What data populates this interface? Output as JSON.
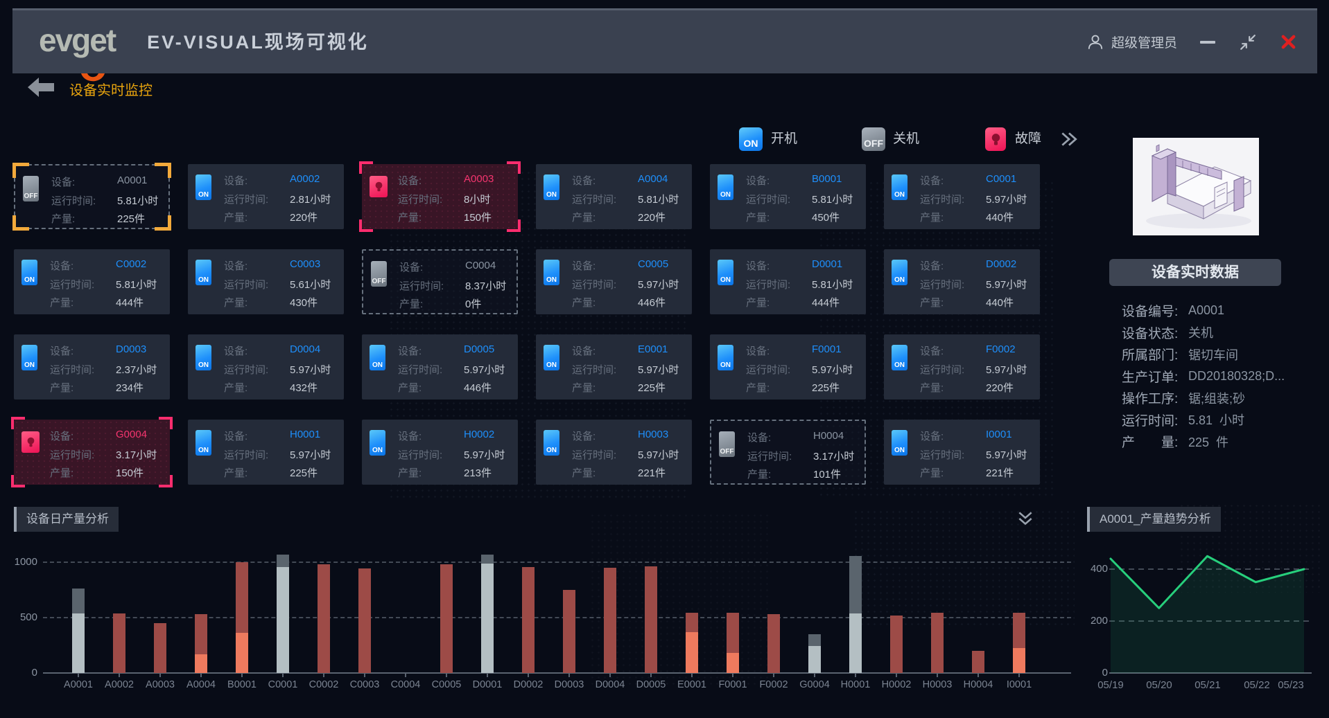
{
  "titlebar": {
    "logo_text": "evget",
    "app_title": "EV-VISUAL现场可视化",
    "user_name": "超级管理员"
  },
  "breadcrumb": {
    "label": "设备实时监控"
  },
  "legend": {
    "on_badge": "ON",
    "off_badge": "OFF",
    "on_label": "开机",
    "off_label": "关机",
    "fault_label": "故障"
  },
  "card_labels": {
    "device": "设备:",
    "runtime": "运行时间:",
    "output": "产量:"
  },
  "devices": [
    {
      "id": "A0001",
      "status": "off",
      "selected": true,
      "runtime": "5.81小时",
      "output": "225件"
    },
    {
      "id": "A0002",
      "status": "on",
      "runtime": "2.81小时",
      "output": "220件"
    },
    {
      "id": "A0003",
      "status": "fault",
      "runtime": "8小时",
      "output": "150件"
    },
    {
      "id": "A0004",
      "status": "on",
      "runtime": "5.81小时",
      "output": "220件"
    },
    {
      "id": "B0001",
      "status": "on",
      "runtime": "5.81小时",
      "output": "450件"
    },
    {
      "id": "C0001",
      "status": "on",
      "runtime": "5.97小时",
      "output": "440件"
    },
    {
      "id": "C0002",
      "status": "on",
      "runtime": "5.81小时",
      "output": "444件"
    },
    {
      "id": "C0003",
      "status": "on",
      "runtime": "5.61小时",
      "output": "430件"
    },
    {
      "id": "C0004",
      "status": "off",
      "runtime": "8.37小时",
      "output": "0件"
    },
    {
      "id": "C0005",
      "status": "on",
      "runtime": "5.97小时",
      "output": "446件"
    },
    {
      "id": "D0001",
      "status": "on",
      "runtime": "5.81小时",
      "output": "444件"
    },
    {
      "id": "D0002",
      "status": "on",
      "runtime": "5.97小时",
      "output": "440件"
    },
    {
      "id": "D0003",
      "status": "on",
      "runtime": "2.37小时",
      "output": "234件"
    },
    {
      "id": "D0004",
      "status": "on",
      "runtime": "5.97小时",
      "output": "432件"
    },
    {
      "id": "D0005",
      "status": "on",
      "runtime": "5.97小时",
      "output": "446件"
    },
    {
      "id": "E0001",
      "status": "on",
      "runtime": "5.97小时",
      "output": "225件"
    },
    {
      "id": "F0001",
      "status": "on",
      "runtime": "5.97小时",
      "output": "225件"
    },
    {
      "id": "F0002",
      "status": "on",
      "runtime": "5.97小时",
      "output": "220件"
    },
    {
      "id": "G0004",
      "status": "fault",
      "runtime": "3.17小时",
      "output": "150件"
    },
    {
      "id": "H0001",
      "status": "on",
      "runtime": "5.97小时",
      "output": "225件"
    },
    {
      "id": "H0002",
      "status": "on",
      "runtime": "5.97小时",
      "output": "213件"
    },
    {
      "id": "H0003",
      "status": "on",
      "runtime": "5.97小时",
      "output": "221件"
    },
    {
      "id": "H0004",
      "status": "off",
      "runtime": "3.17小时",
      "output": "101件"
    },
    {
      "id": "I0001",
      "status": "on",
      "runtime": "5.97小时",
      "output": "221件"
    }
  ],
  "detail_panel": {
    "title": "设备实时数据",
    "fields": [
      {
        "label": "设备编号:",
        "value": "A0001"
      },
      {
        "label": "设备状态:",
        "value": "关机"
      },
      {
        "label": "所属部门:",
        "value": "锯切车间"
      },
      {
        "label": "生产订单:",
        "value": "DD20180328;D..."
      },
      {
        "label": "操作工序:",
        "value": "锯;组装;砂"
      },
      {
        "label": "运行时间:",
        "value": "5.81  小时"
      },
      {
        "label": "产　　量:",
        "value": "225  件"
      }
    ]
  },
  "icons": {
    "user": "person-outline",
    "minimize": "horizontal-bar",
    "restore": "compress-arrows",
    "close": "red-x",
    "back": "solid-left-arrow",
    "fault": "bulb",
    "legend_more": "double-chevron-right",
    "collapse": "double-chevron-down"
  },
  "colors": {
    "on_blue": "#1e8ffb",
    "fault_pink": "#f5356f",
    "selected_yellow": "#f2a93b",
    "breadcrumb_orange": "#e8a40e",
    "close_red": "#e02020",
    "line_green": "#27cf7c"
  },
  "chart_data": [
    {
      "type": "bar",
      "title": "设备日产量分析",
      "stacked": true,
      "categories": [
        "A0001",
        "A0002",
        "A0003",
        "A0004",
        "B0001",
        "C0001",
        "C0002",
        "C0003",
        "C0004",
        "C0005",
        "D0001",
        "D0002",
        "D0003",
        "D0004",
        "D0005",
        "E0001",
        "F0001",
        "F0002",
        "G0004",
        "H0001",
        "H0002",
        "H0003",
        "H0004",
        "I0001"
      ],
      "series": [
        {
          "name": "silver",
          "color": "#b4bfc3",
          "values": [
            540,
            0,
            0,
            0,
            0,
            955,
            0,
            0,
            0,
            0,
            985,
            0,
            0,
            0,
            0,
            0,
            0,
            0,
            245,
            540,
            0,
            0,
            0,
            0
          ]
        },
        {
          "name": "orange",
          "color": "#ee7a5e",
          "values": [
            0,
            0,
            0,
            170,
            360,
            0,
            0,
            0,
            0,
            0,
            0,
            0,
            0,
            0,
            0,
            370,
            180,
            0,
            0,
            0,
            0,
            0,
            0,
            225
          ]
        },
        {
          "name": "red",
          "color": "#9d4b47",
          "values": [
            0,
            535,
            450,
            365,
            640,
            0,
            980,
            945,
            0,
            980,
            0,
            955,
            750,
            950,
            965,
            175,
            365,
            530,
            0,
            0,
            520,
            545,
            200,
            320
          ]
        },
        {
          "name": "darkgray",
          "color": "#5a646d",
          "values": [
            225,
            0,
            0,
            0,
            0,
            110,
            0,
            0,
            0,
            0,
            80,
            0,
            0,
            0,
            0,
            0,
            0,
            0,
            105,
            520,
            0,
            0,
            0,
            0
          ]
        }
      ],
      "ylim": [
        0,
        1100
      ],
      "yticks": [
        0,
        500,
        1000
      ],
      "grid": "dashed"
    },
    {
      "type": "line",
      "title": "A0001_产量趋势分析",
      "x": [
        "05/19",
        "05/20",
        "05/21",
        "05/22",
        "05/23"
      ],
      "values": [
        440,
        250,
        450,
        350,
        400
      ],
      "color": "#27cf7c",
      "ylim": [
        0,
        500
      ],
      "yticks": [
        0,
        200,
        400
      ],
      "grid": "dashed",
      "legend": "none"
    }
  ]
}
